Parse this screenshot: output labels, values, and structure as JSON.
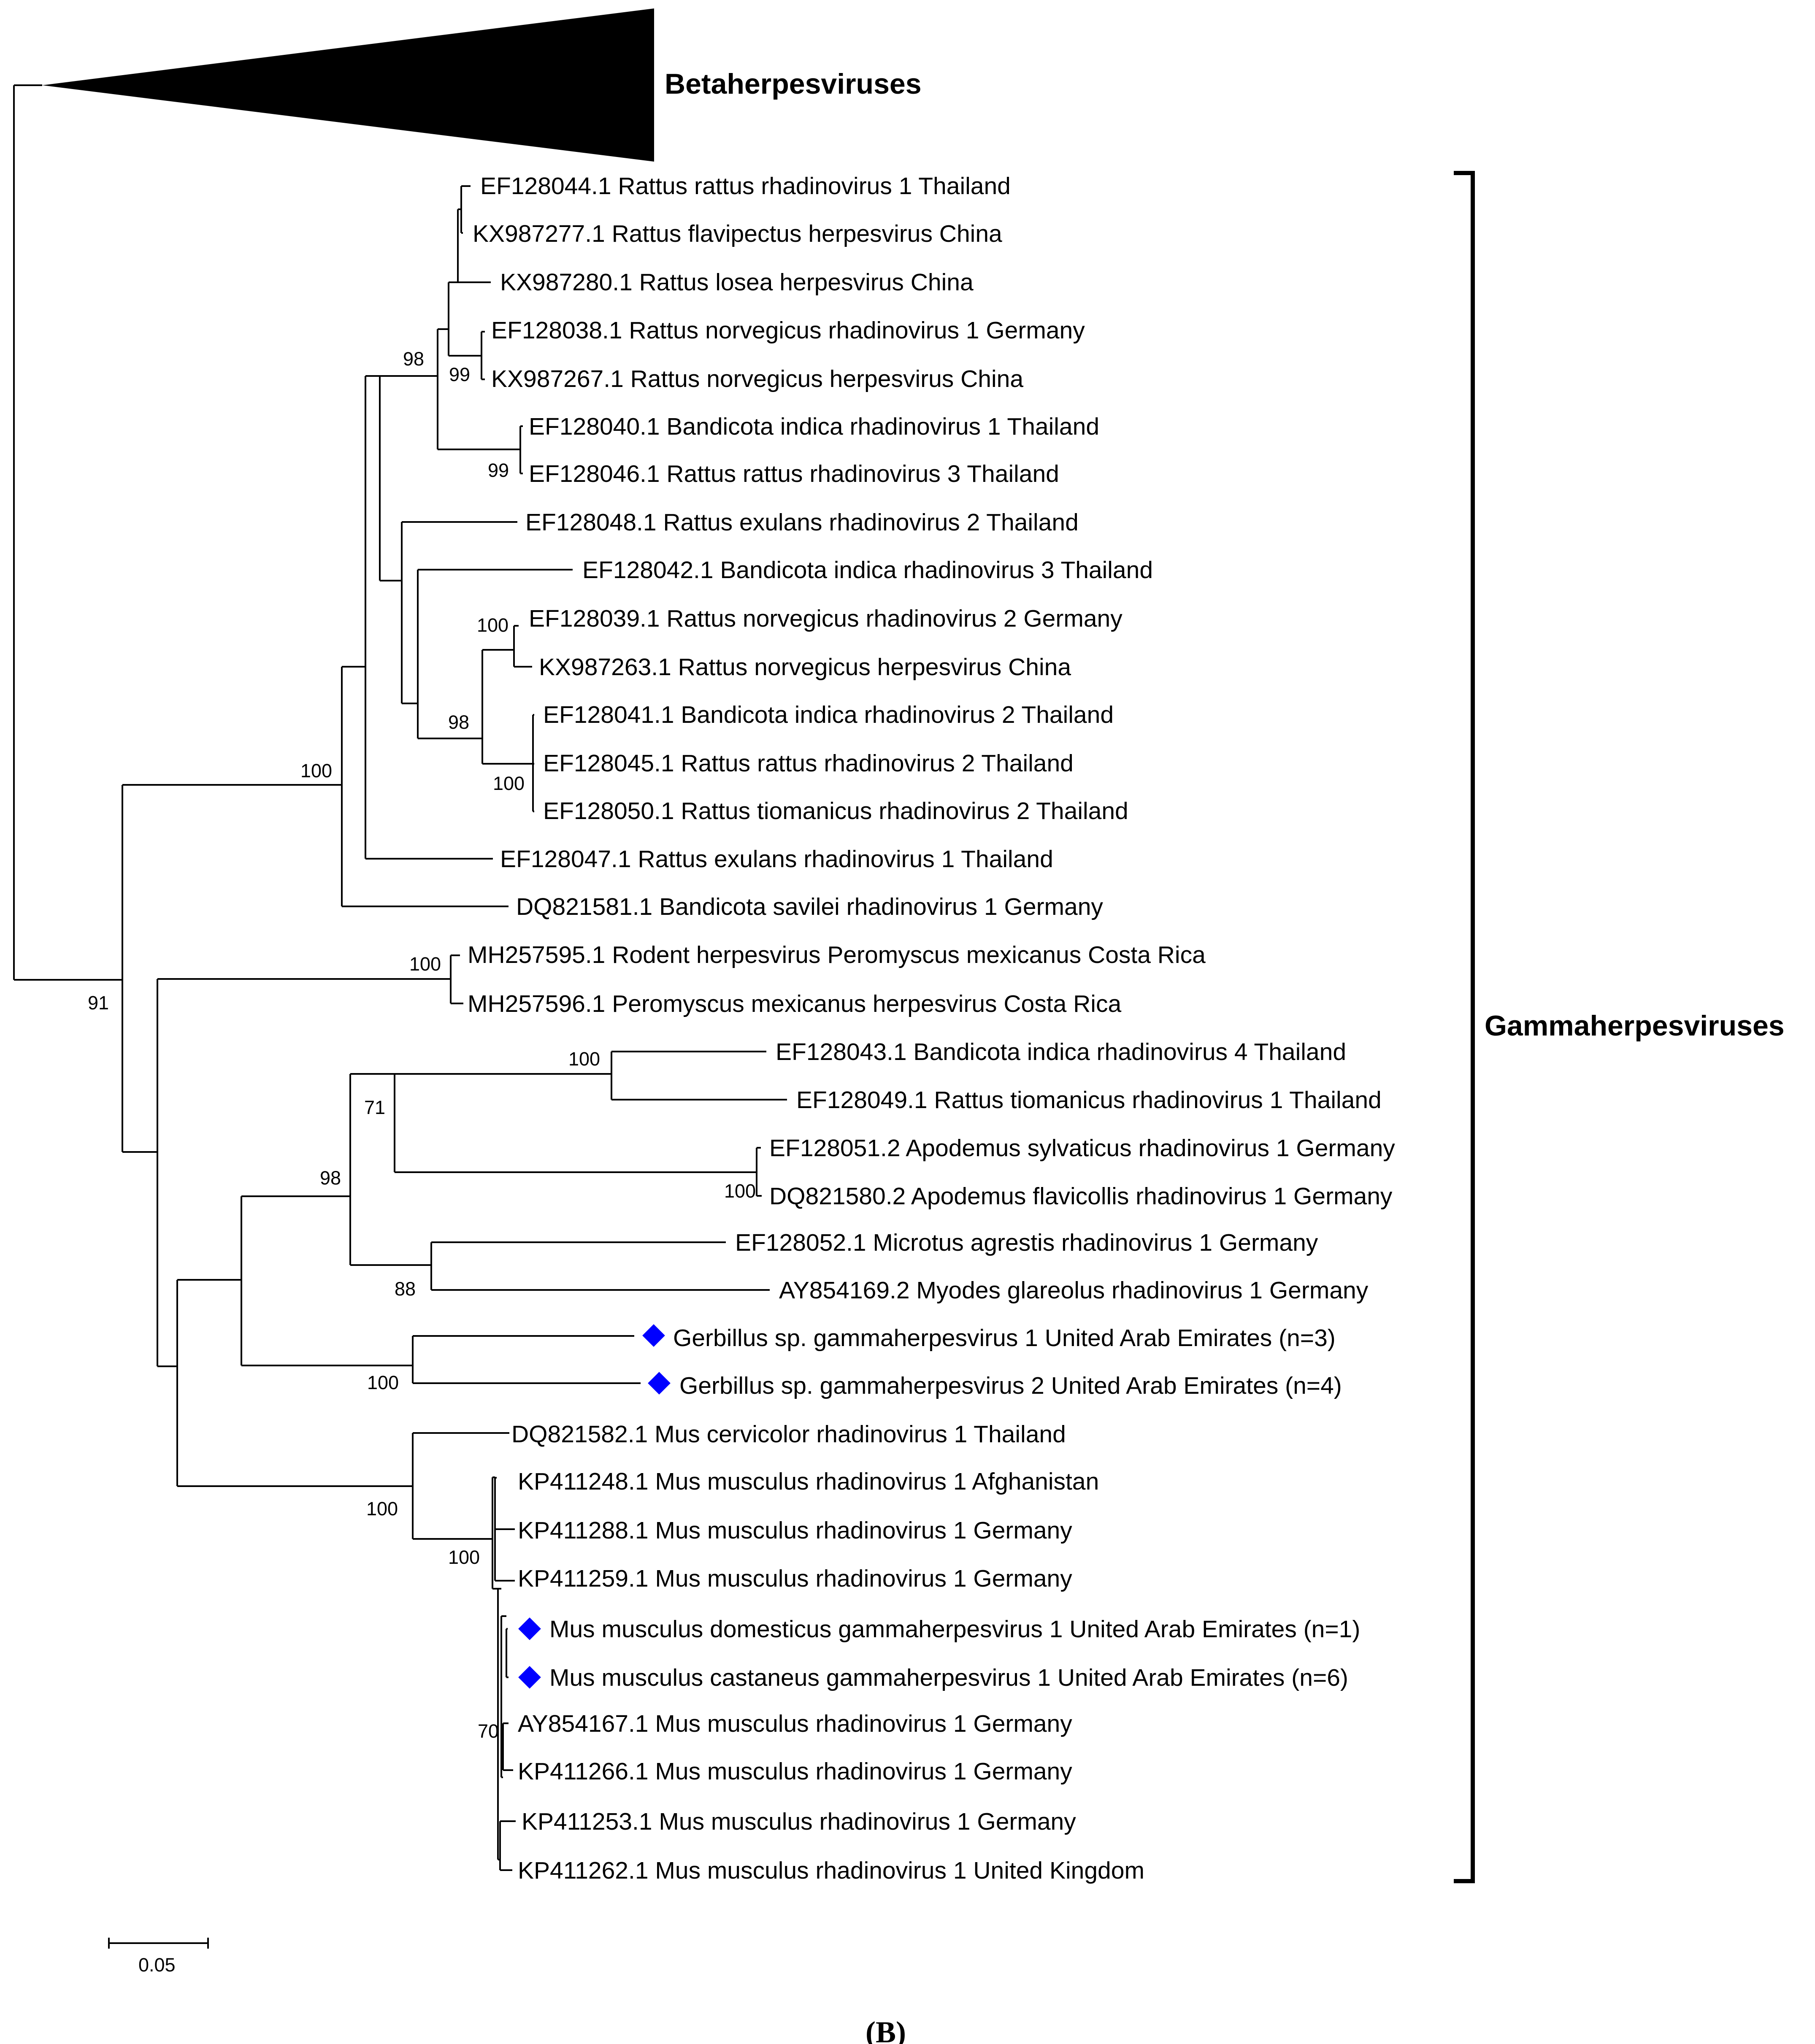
{
  "figure": {
    "panel_label": "(B)",
    "scale_bar_label": "0.05",
    "marker_color": "#0000ff"
  },
  "clades": {
    "beta_label": "Betaherpesviruses",
    "gamma_label": "Gammaherpesviruses"
  },
  "taxa": [
    {
      "label": "EF128044.1 Rattus rattus rhadinovirus 1 Thailand",
      "marker": false
    },
    {
      "label": "KX987277.1 Rattus flavipectus herpesvirus China",
      "marker": false
    },
    {
      "label": "KX987280.1 Rattus losea herpesvirus China",
      "marker": false
    },
    {
      "label": "EF128038.1 Rattus norvegicus rhadinovirus 1 Germany",
      "marker": false
    },
    {
      "label": "KX987267.1 Rattus norvegicus herpesvirus China",
      "marker": false
    },
    {
      "label": "EF128040.1 Bandicota indica rhadinovirus 1 Thailand",
      "marker": false
    },
    {
      "label": "EF128046.1 Rattus rattus rhadinovirus 3 Thailand",
      "marker": false
    },
    {
      "label": "EF128048.1 Rattus exulans rhadinovirus 2 Thailand",
      "marker": false
    },
    {
      "label": "EF128042.1 Bandicota indica rhadinovirus 3 Thailand",
      "marker": false
    },
    {
      "label": "EF128039.1 Rattus norvegicus rhadinovirus 2 Germany",
      "marker": false
    },
    {
      "label": "KX987263.1 Rattus norvegicus herpesvirus China",
      "marker": false
    },
    {
      "label": "EF128041.1 Bandicota indica rhadinovirus 2 Thailand",
      "marker": false
    },
    {
      "label": "EF128045.1 Rattus rattus rhadinovirus 2 Thailand",
      "marker": false
    },
    {
      "label": "EF128050.1 Rattus tiomanicus rhadinovirus 2 Thailand",
      "marker": false
    },
    {
      "label": "EF128047.1 Rattus exulans rhadinovirus 1 Thailand",
      "marker": false
    },
    {
      "label": "DQ821581.1 Bandicota savilei rhadinovirus 1 Germany",
      "marker": false
    },
    {
      "label": "MH257595.1 Rodent herpesvirus Peromyscus mexicanus Costa Rica",
      "marker": false
    },
    {
      "label": "MH257596.1 Peromyscus mexicanus herpesvirus Costa Rica",
      "marker": false
    },
    {
      "label": "EF128043.1 Bandicota indica rhadinovirus 4 Thailand",
      "marker": false
    },
    {
      "label": "EF128049.1 Rattus tiomanicus rhadinovirus 1 Thailand",
      "marker": false
    },
    {
      "label": "EF128051.2 Apodemus sylvaticus rhadinovirus 1 Germany",
      "marker": false
    },
    {
      "label": "DQ821580.2 Apodemus flavicollis rhadinovirus 1 Germany",
      "marker": false
    },
    {
      "label": "EF128052.1 Microtus agrestis rhadinovirus 1 Germany",
      "marker": false
    },
    {
      "label": "AY854169.2 Myodes glareolus rhadinovirus 1 Germany",
      "marker": false
    },
    {
      "label": "Gerbillus sp. gammaherpesvirus 1 United Arab Emirates (n=3)",
      "marker": true
    },
    {
      "label": "Gerbillus sp. gammaherpesvirus 2 United Arab Emirates (n=4)",
      "marker": true
    },
    {
      "label": "DQ821582.1 Mus cervicolor rhadinovirus 1 Thailand",
      "marker": false
    },
    {
      "label": "KP411248.1 Mus musculus rhadinovirus 1 Afghanistan",
      "marker": false
    },
    {
      "label": "KP411288.1 Mus musculus rhadinovirus 1 Germany",
      "marker": false
    },
    {
      "label": "KP411259.1 Mus musculus rhadinovirus 1 Germany",
      "marker": false
    },
    {
      "label": "Mus musculus domesticus gammaherpesvirus 1 United Arab Emirates (n=1)",
      "marker": true
    },
    {
      "label": "Mus musculus castaneus gammaherpesvirus 1 United Arab Emirates (n=6)",
      "marker": true
    },
    {
      "label": "AY854167.1 Mus musculus rhadinovirus 1 Germany",
      "marker": false
    },
    {
      "label": "KP411266.1 Mus musculus rhadinovirus 1 Germany",
      "marker": false
    },
    {
      "label": "KP411253.1 Mus musculus rhadinovirus 1 Germany",
      "marker": false
    },
    {
      "label": "KP411262.1 Mus musculus rhadinovirus 1 United Kingdom",
      "marker": false
    }
  ],
  "bootstrap": [
    {
      "node": "rattus-core",
      "value": "98"
    },
    {
      "node": "norvegicus-pair",
      "value": "99"
    },
    {
      "node": "ef128040-ef128046",
      "value": "99"
    },
    {
      "node": "ef128039-kx987263",
      "value": "100"
    },
    {
      "node": "ef128039-to-ef128050",
      "value": "98"
    },
    {
      "node": "ef128041-ef128045-ef128050",
      "value": "100"
    },
    {
      "node": "rattus-bandicota-clade",
      "value": "100"
    },
    {
      "node": "ingroup-root",
      "value": "91"
    },
    {
      "node": "peromyscus-pair",
      "value": "100"
    },
    {
      "node": "ef128043-ef128049",
      "value": "100"
    },
    {
      "node": "apodemus-pair",
      "value": "100"
    },
    {
      "node": "thailand-apodemus-clade",
      "value": "71"
    },
    {
      "node": "microtus-myodes",
      "value": "88"
    },
    {
      "node": "murid-clade",
      "value": "98"
    },
    {
      "node": "gerbillus-pair",
      "value": "100"
    },
    {
      "node": "mus-clade",
      "value": "100"
    },
    {
      "node": "mus-musculus-clade",
      "value": "100"
    },
    {
      "node": "mus-musculus-subclade",
      "value": "70"
    }
  ]
}
